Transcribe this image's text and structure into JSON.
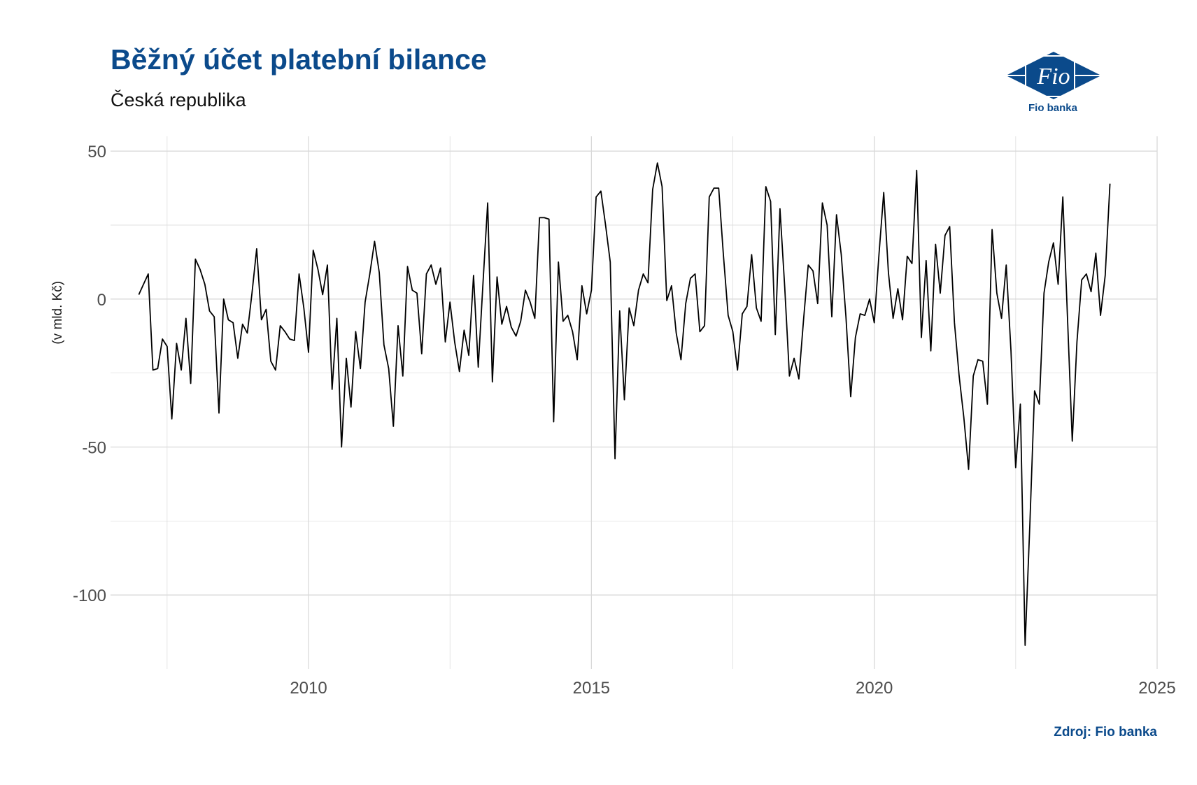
{
  "header": {
    "title": "Běžný účet platební bilance",
    "subtitle": "Česká republika",
    "logo_text": "Fio",
    "logo_caption": "Fio banka"
  },
  "footer": {
    "source": "Zdroj: Fio banka"
  },
  "colors": {
    "brand": "#0b4a8b",
    "line": "#000000",
    "grid": "#d9d9d9"
  },
  "chart_data": {
    "type": "line",
    "title": "Běžný účet platební bilance",
    "subtitle": "Česká republika",
    "xlabel": "",
    "ylabel": "(v mld. Kč)",
    "xlim": [
      2006.5,
      2025
    ],
    "ylim": [
      -125,
      55
    ],
    "x_ticks": [
      2010,
      2015,
      2020,
      2025
    ],
    "y_ticks": [
      50,
      0,
      -50,
      -100
    ],
    "grid": true,
    "legend": "none",
    "series": [
      {
        "x": [
          2007.0,
          2007.083,
          2007.167,
          2007.25,
          2007.333,
          2007.417,
          2007.5,
          2007.583,
          2007.667,
          2007.75,
          2007.833,
          2007.917,
          2008.0,
          2008.083,
          2008.167,
          2008.25,
          2008.333,
          2008.417,
          2008.5,
          2008.583,
          2008.667,
          2008.75,
          2008.833,
          2008.917,
          2009.0,
          2009.083,
          2009.167,
          2009.25,
          2009.333,
          2009.417,
          2009.5,
          2009.583,
          2009.667,
          2009.75,
          2009.833,
          2009.917,
          2010.0,
          2010.083,
          2010.167,
          2010.25,
          2010.333,
          2010.417,
          2010.5,
          2010.583,
          2010.667,
          2010.75,
          2010.833,
          2010.917,
          2011.0,
          2011.083,
          2011.167,
          2011.25,
          2011.333,
          2011.417,
          2011.5,
          2011.583,
          2011.667,
          2011.75,
          2011.833,
          2011.917,
          2012.0,
          2012.083,
          2012.167,
          2012.25,
          2012.333,
          2012.417,
          2012.5,
          2012.583,
          2012.667,
          2012.75,
          2012.833,
          2012.917,
          2013.0,
          2013.083,
          2013.167,
          2013.25,
          2013.333,
          2013.417,
          2013.5,
          2013.583,
          2013.667,
          2013.75,
          2013.833,
          2013.917,
          2014.0,
          2014.083,
          2014.167,
          2014.25,
          2014.333,
          2014.417,
          2014.5,
          2014.583,
          2014.667,
          2014.75,
          2014.833,
          2014.917,
          2015.0,
          2015.083,
          2015.167,
          2015.25,
          2015.333,
          2015.417,
          2015.5,
          2015.583,
          2015.667,
          2015.75,
          2015.833,
          2015.917,
          2016.0,
          2016.083,
          2016.167,
          2016.25,
          2016.333,
          2016.417,
          2016.5,
          2016.583,
          2016.667,
          2016.75,
          2016.833,
          2016.917,
          2017.0,
          2017.083,
          2017.167,
          2017.25,
          2017.333,
          2017.417,
          2017.5,
          2017.583,
          2017.667,
          2017.75,
          2017.833,
          2017.917,
          2018.0,
          2018.083,
          2018.167,
          2018.25,
          2018.333,
          2018.417,
          2018.5,
          2018.583,
          2018.667,
          2018.75,
          2018.833,
          2018.917,
          2019.0,
          2019.083,
          2019.167,
          2019.25,
          2019.333,
          2019.417,
          2019.5,
          2019.583,
          2019.667,
          2019.75,
          2019.833,
          2019.917,
          2020.0,
          2020.083,
          2020.167,
          2020.25,
          2020.333,
          2020.417,
          2020.5,
          2020.583,
          2020.667,
          2020.75,
          2020.833,
          2020.917,
          2021.0,
          2021.083,
          2021.167,
          2021.25,
          2021.333,
          2021.417,
          2021.5,
          2021.583,
          2021.667,
          2021.75,
          2021.833,
          2021.917,
          2022.0,
          2022.083,
          2022.167,
          2022.25,
          2022.333,
          2022.417,
          2022.5,
          2022.583,
          2022.667,
          2022.75,
          2022.833,
          2022.917,
          2023.0,
          2023.083,
          2023.167,
          2023.25,
          2023.333,
          2023.417,
          2023.5,
          2023.583,
          2023.667,
          2023.75,
          2023.833,
          2023.917,
          2024.0,
          2024.083,
          2024.167
        ],
        "values": [
          1.5,
          5,
          8.5,
          -24,
          -23.5,
          -13.5,
          -16,
          -40.5,
          -15,
          -24,
          -6.5,
          -28.5,
          13.5,
          10,
          5,
          -4,
          -6,
          -38.5,
          0,
          -7,
          -8,
          -20,
          -8.5,
          -11.5,
          2,
          17,
          -7,
          -3.5,
          -21,
          -24,
          -9,
          -11,
          -13.5,
          -14,
          8.5,
          -3,
          -18,
          16.5,
          10,
          1.5,
          11.5,
          -30.5,
          -6.5,
          -50,
          -20,
          -36.5,
          -11,
          -23.5,
          -1,
          8.5,
          19.5,
          9,
          -15.5,
          -23.5,
          -43,
          -9,
          -26,
          11,
          3,
          2,
          -18.5,
          8.5,
          11.5,
          5,
          10.5,
          -14.5,
          -1,
          -14.5,
          -24.5,
          -10.5,
          -19,
          8,
          -23,
          5,
          32.5,
          -28,
          7.5,
          -8.5,
          -2.5,
          -9.5,
          -12.5,
          -7.5,
          3,
          -1,
          -6.5,
          27.5,
          27.5,
          27,
          -41.5,
          12.5,
          -7.5,
          -5.5,
          -11,
          -20.5,
          4.5,
          -5,
          3,
          34.5,
          36.5,
          25,
          12.5,
          -54,
          -4,
          -34,
          -3,
          -9,
          3,
          8.5,
          5.5,
          37,
          46,
          38,
          -0.5,
          4.5,
          -11.5,
          -20.5,
          -1.5,
          7,
          8.5,
          -11,
          -9,
          34.5,
          37.5,
          37.5,
          15,
          -5.5,
          -11,
          -24,
          -5,
          -2.5,
          15,
          -3,
          -7.5,
          38,
          33,
          -12,
          30.5,
          4,
          -26,
          -20,
          -27,
          -7,
          11.5,
          9.5,
          -1.5,
          32.5,
          25,
          -6,
          28.5,
          15,
          -6,
          -33,
          -13,
          -5,
          -5.5,
          0,
          -8,
          15,
          36,
          9,
          -6.5,
          3.5,
          -7,
          14.5,
          12,
          43.5,
          -13,
          13,
          -17.5,
          18.5,
          2,
          21.5,
          24.5,
          -8,
          -26,
          -40,
          -57.5,
          -26,
          -20.5,
          -21,
          -35.5,
          23.5,
          2,
          -6.5,
          11.5,
          -17.5,
          -57,
          -35.5,
          -117,
          -76,
          -31,
          -35.5,
          2,
          12.5,
          19,
          5,
          34.5,
          -7,
          -48,
          -14.5,
          6.5,
          8.5,
          2.5,
          15.5,
          -5.5,
          8,
          39
        ]
      }
    ]
  }
}
